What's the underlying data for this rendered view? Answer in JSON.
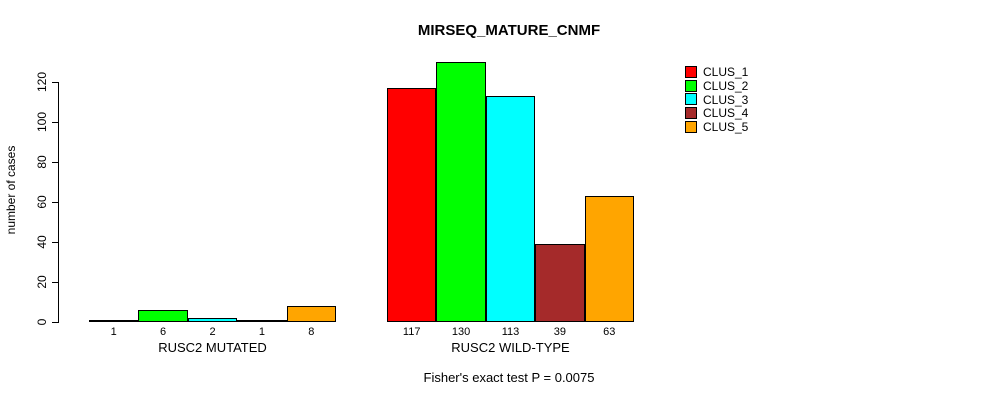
{
  "chart_data": {
    "type": "bar",
    "title": "MIRSEQ_MATURE_CNMF",
    "xlabel": "",
    "ylabel": "number of cases",
    "ylim": [
      0,
      130
    ],
    "yticks": [
      0,
      20,
      40,
      60,
      80,
      100,
      120
    ],
    "grid": false,
    "legend_position": "top-right",
    "categories": [
      "RUSC2 MUTATED",
      "RUSC2 WILD-TYPE"
    ],
    "series": [
      {
        "name": "CLUS_1",
        "color": "#FF0000",
        "values": [
          1,
          117
        ]
      },
      {
        "name": "CLUS_2",
        "color": "#00FF00",
        "values": [
          6,
          130
        ]
      },
      {
        "name": "CLUS_3",
        "color": "#00FFFF",
        "values": [
          2,
          113
        ]
      },
      {
        "name": "CLUS_4",
        "color": "#A52A2A",
        "values": [
          1,
          39
        ]
      },
      {
        "name": "CLUS_5",
        "color": "#FFA500",
        "values": [
          8,
          63
        ]
      }
    ],
    "bar_value_labels": [
      [
        "1",
        "6",
        "2",
        "1",
        "8"
      ],
      [
        "117",
        "130",
        "113",
        "39",
        "63"
      ]
    ],
    "annotation": "Fisher's exact test P = 0.0075"
  },
  "colors": {
    "axis": "#000000",
    "text": "#000000",
    "background": "#FFFFFF"
  }
}
